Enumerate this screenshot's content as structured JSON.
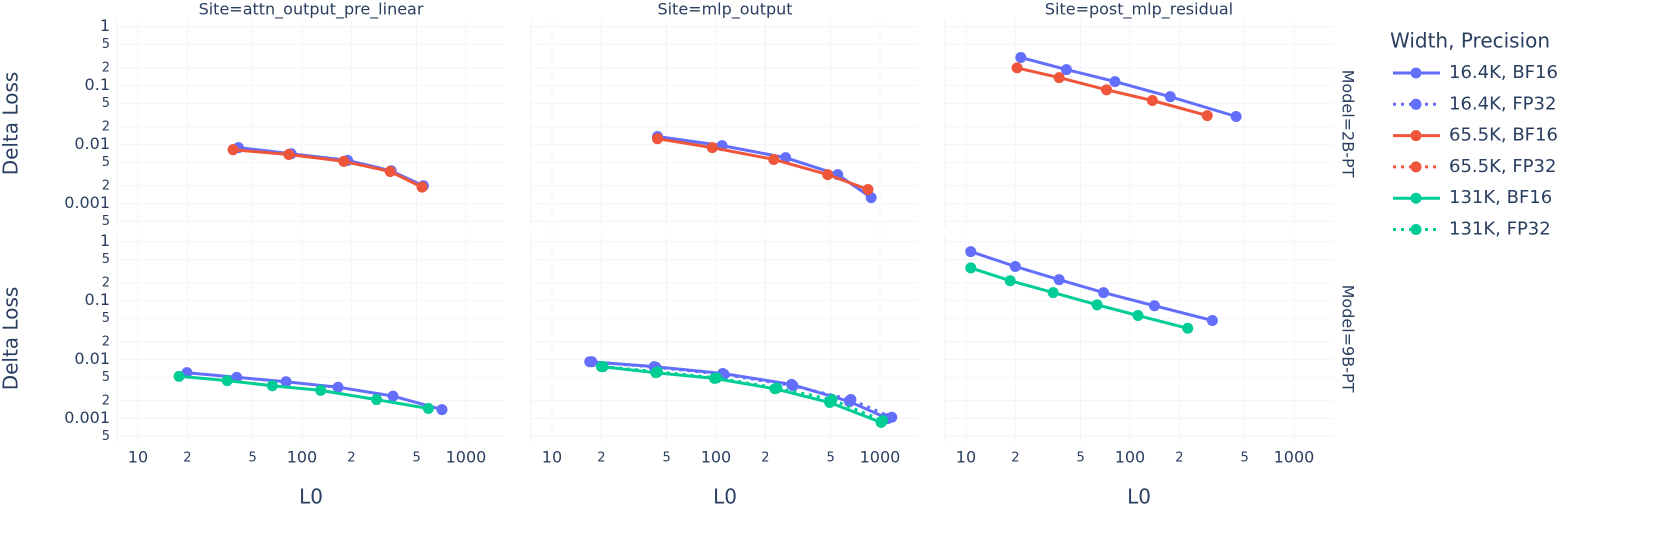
{
  "chart_data": {
    "type": "line",
    "xscale": "log",
    "yscale": "log",
    "x_label": "L0",
    "y_label": "Delta Loss",
    "xlim": [
      7.45,
      1730
    ],
    "ylim": [
      0.0004,
      1.3
    ],
    "xticks": [
      10,
      {
        "value": 20,
        "label": "2"
      },
      {
        "value": 50,
        "label": "5"
      },
      100,
      {
        "value": 200,
        "label": "2"
      },
      {
        "value": 500,
        "label": "5"
      },
      1000
    ],
    "yticks": [
      1,
      {
        "value": 0.5,
        "label": "5"
      },
      {
        "value": 0.2,
        "label": "2"
      },
      0.1,
      {
        "value": 0.05,
        "label": "5"
      },
      {
        "value": 0.02,
        "label": "2"
      },
      0.01,
      {
        "value": 0.005,
        "label": "5"
      },
      {
        "value": 0.002,
        "label": "2"
      },
      0.001,
      {
        "value": 0.0005,
        "label": "5"
      }
    ],
    "grid": true,
    "columns": [
      "Site=attn_output_pre_linear",
      "Site=mlp_output",
      "Site=post_mlp_residual"
    ],
    "legend": {
      "title": "Width, Precision",
      "position": "right",
      "entries": [
        {
          "name": "16.4K, BF16",
          "color": "#636efa",
          "dash": "solid"
        },
        {
          "name": "16.4K, FP32",
          "color": "#636efa",
          "dash": "dot"
        },
        {
          "name": "65.5K, BF16",
          "color": "#EF553B",
          "dash": "solid"
        },
        {
          "name": "65.5K, FP32",
          "color": "#EF553B",
          "dash": "dot"
        },
        {
          "name": "131K, BF16",
          "color": "#00cc96",
          "dash": "solid"
        },
        {
          "name": "131K, FP32",
          "color": "#00cc96",
          "dash": "dot"
        }
      ]
    },
    "rows": [
      {
        "label": "Model=2B-PT",
        "panels": [
          {
            "series": [
              {
                "name": "16.4K, BF16",
                "color": "#636efa",
                "dash": "solid",
                "x": [
                  41,
                  86,
                  190,
                  350,
                  550
                ],
                "values": [
                  0.0089,
                  0.007,
                  0.0054,
                  0.0036,
                  0.002
                ]
              },
              {
                "name": "65.5K, BF16",
                "color": "#EF553B",
                "dash": "solid",
                "x": [
                  38,
                  83,
                  180,
                  345,
                  540
                ],
                "values": [
                  0.0082,
                  0.0068,
                  0.0052,
                  0.0035,
                  0.0019
                ]
              }
            ]
          },
          {
            "series": [
              {
                "name": "16.4K, BF16",
                "color": "#636efa",
                "dash": "solid",
                "x": [
                  44,
                  109,
                  266,
                  553,
                  884
                ],
                "values": [
                  0.0137,
                  0.0096,
                  0.006,
                  0.0031,
                  0.00126
                ]
              },
              {
                "name": "65.5K, BF16",
                "color": "#EF553B",
                "dash": "solid",
                "x": [
                  44,
                  95,
                  225,
                  480,
                  845
                ],
                "values": [
                  0.0126,
                  0.0089,
                  0.0056,
                  0.0031,
                  0.00173
                ]
              }
            ]
          },
          {
            "series": [
              {
                "name": "16.4K, BF16",
                "color": "#636efa",
                "dash": "solid",
                "x": [
                  21.6,
                  41,
                  81,
                  176,
                  444
                ],
                "values": [
                  0.3,
                  0.187,
                  0.117,
                  0.065,
                  0.03
                ]
              },
              {
                "name": "65.5K, BF16",
                "color": "#EF553B",
                "dash": "solid",
                "x": [
                  20.5,
                  37,
                  72,
                  137,
                  296
                ],
                "values": [
                  0.2,
                  0.137,
                  0.085,
                  0.056,
                  0.031
                ]
              }
            ]
          }
        ]
      },
      {
        "label": "Model=9B-PT",
        "panels": [
          {
            "series": [
              {
                "name": "16.4K, BF16",
                "color": "#636efa",
                "dash": "solid",
                "x": [
                  19.9,
                  40,
                  80,
                  166,
                  359,
                  714
                ],
                "values": [
                  0.006,
                  0.005,
                  0.0042,
                  0.0034,
                  0.0024,
                  0.00142
                ]
              },
              {
                "name": "131K, BF16",
                "color": "#00cc96",
                "dash": "solid",
                "x": [
                  17.8,
                  35,
                  66,
                  130,
                  285,
                  590
                ],
                "values": [
                  0.0052,
                  0.0044,
                  0.0036,
                  0.003,
                  0.0021,
                  0.00148
                ]
              }
            ]
          },
          {
            "series": [
              {
                "name": "16.4K, BF16",
                "color": "#636efa",
                "dash": "solid",
                "x": [
                  17,
                  42,
                  110,
                  289,
                  652,
                  1117
                ],
                "values": [
                  0.0092,
                  0.0076,
                  0.0058,
                  0.0038,
                  0.00194,
                  0.001
                ]
              },
              {
                "name": "16.4K, FP32",
                "color": "#636efa",
                "dash": "dot",
                "x": [
                  17.5,
                  43,
                  112,
                  295,
                  665,
                  1180
                ],
                "values": [
                  0.0092,
                  0.0074,
                  0.0056,
                  0.0036,
                  0.0021,
                  0.00105
                ]
              },
              {
                "name": "131K, BF16",
                "color": "#00cc96",
                "dash": "solid",
                "x": [
                  20,
                  43,
                  98,
                  229,
                  494,
                  1016
                ],
                "values": [
                  0.0076,
                  0.006,
                  0.0048,
                  0.0032,
                  0.00187,
                  0.00086
                ]
              },
              {
                "name": "131K, FP32",
                "color": "#00cc96",
                "dash": "dot",
                "x": [
                  20.5,
                  44,
                  101,
                  235,
                  510,
                  1040
                ],
                "values": [
                  0.0076,
                  0.0062,
                  0.0049,
                  0.0033,
                  0.0021,
                  0.00092
                ]
              }
            ]
          },
          {
            "series": [
              {
                "name": "16.4K, BF16",
                "color": "#636efa",
                "dash": "solid",
                "x": [
                  10.7,
                  20,
                  37,
                  69,
                  141,
                  318
                ],
                "values": [
                  0.68,
                  0.38,
                  0.227,
                  0.137,
                  0.082,
                  0.046
                ]
              },
              {
                "name": "131K, BF16",
                "color": "#00cc96",
                "dash": "solid",
                "x": [
                  10.7,
                  18.6,
                  34,
                  63,
                  112,
                  225
                ],
                "values": [
                  0.36,
                  0.218,
                  0.137,
                  0.085,
                  0.056,
                  0.034
                ]
              }
            ]
          }
        ]
      }
    ]
  }
}
